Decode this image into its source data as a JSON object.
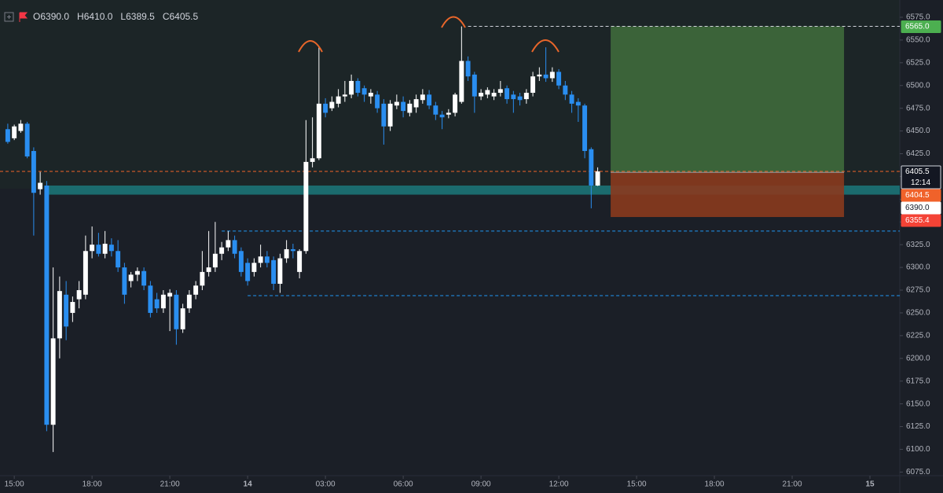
{
  "chart_data": {
    "type": "candlestick",
    "ohlc": [
      {
        "label": "O",
        "value": "6390.0"
      },
      {
        "label": "H",
        "value": "6410.0"
      },
      {
        "label": "L",
        "value": "6389.5"
      },
      {
        "label": "C",
        "value": "6405.5"
      }
    ],
    "x": [
      -0.25,
      0,
      0.25,
      0.5,
      0.75,
      1,
      1.25,
      1.5,
      1.75,
      2,
      2.25,
      2.5,
      2.75,
      3,
      3.25,
      3.5,
      3.75,
      4,
      4.25,
      4.5,
      4.75,
      5,
      5.25,
      5.5,
      5.75,
      6,
      6.25,
      6.5,
      6.75,
      7,
      7.25,
      7.5,
      7.75,
      8,
      8.25,
      8.5,
      8.75,
      9,
      9.25,
      9.5,
      9.75,
      10,
      10.25,
      10.5,
      10.75,
      11,
      11.25,
      11.5,
      11.75,
      12,
      12.25,
      12.5,
      12.75,
      13,
      13.25,
      13.5,
      13.75,
      14,
      14.25,
      14.5,
      14.75,
      15,
      15.25,
      15.5,
      15.75,
      16,
      16.25,
      16.5,
      16.75,
      17,
      17.25,
      17.5,
      17.75,
      18,
      18.25,
      18.5,
      18.75,
      19,
      19.25,
      19.5,
      19.75,
      20,
      20.25,
      20.5,
      20.75,
      21,
      21.25,
      21.5,
      21.75,
      22,
      22.25,
      22.5
    ],
    "open": [
      6452,
      6442,
      6450,
      6458,
      6428,
      6386,
      6390,
      6127,
      6222,
      6270,
      6250,
      6265,
      6270,
      6318,
      6325,
      6315,
      6325,
      6318,
      6300,
      6285,
      6292,
      6296,
      6280,
      6265,
      6255,
      6268,
      6270,
      6232,
      6255,
      6270,
      6280,
      6295,
      6300,
      6315,
      6322,
      6330,
      6318,
      6305,
      6295,
      6305,
      6312,
      6308,
      6282,
      6310,
      6320,
      6295,
      6318,
      6416,
      6420,
      6480,
      6475,
      6480,
      6488,
      6490,
      6505,
      6497,
      6488,
      6490,
      6480,
      6455,
      6478,
      6482,
      6470,
      6476,
      6484,
      6490,
      6478,
      6468,
      6468,
      6470,
      6482,
      6527,
      6512,
      6488,
      6490,
      6488,
      6492,
      6497,
      6490,
      6488,
      6485,
      6492,
      6510,
      6512,
      6508,
      6515,
      6500,
      6490,
      6482,
      6478,
      6430,
      6390
    ],
    "high": [
      6458,
      6457,
      6462,
      6460,
      6432,
      6405,
      6395,
      6300,
      6290,
      6285,
      6268,
      6285,
      6335,
      6345,
      6338,
      6340,
      6332,
      6330,
      6305,
      6295,
      6300,
      6300,
      6285,
      6272,
      6275,
      6276,
      6275,
      6260,
      6275,
      6285,
      6318,
      6340,
      6350,
      6328,
      6340,
      6335,
      6322,
      6310,
      6310,
      6325,
      6318,
      6312,
      6315,
      6330,
      6326,
      6320,
      6462,
      6465,
      6542,
      6486,
      6488,
      6496,
      6505,
      6512,
      6508,
      6500,
      6496,
      6494,
      6485,
      6484,
      6490,
      6488,
      6484,
      6490,
      6496,
      6495,
      6482,
      6472,
      6474,
      6492,
      6565,
      6532,
      6515,
      6496,
      6498,
      6496,
      6505,
      6500,
      6494,
      6492,
      6496,
      6515,
      6520,
      6542,
      6520,
      6518,
      6505,
      6494,
      6486,
      6480,
      6432,
      6410
    ],
    "low": [
      6436,
      6440,
      6448,
      6420,
      6335,
      6380,
      6120,
      6097,
      6200,
      6220,
      6240,
      6255,
      6265,
      6310,
      6312,
      6310,
      6312,
      6295,
      6260,
      6278,
      6285,
      6275,
      6245,
      6250,
      6250,
      6230,
      6215,
      6228,
      6250,
      6265,
      6275,
      6290,
      6295,
      6308,
      6318,
      6310,
      6290,
      6280,
      6290,
      6300,
      6300,
      6275,
      6272,
      6305,
      6310,
      6288,
      6315,
      6410,
      6418,
      6465,
      6472,
      6476,
      6482,
      6486,
      6488,
      6482,
      6480,
      6470,
      6435,
      6450,
      6474,
      6465,
      6466,
      6470,
      6480,
      6474,
      6462,
      6452,
      6464,
      6466,
      6480,
      6505,
      6470,
      6484,
      6486,
      6484,
      6488,
      6480,
      6470,
      6478,
      6480,
      6488,
      6505,
      6504,
      6504,
      6496,
      6484,
      6470,
      6460,
      6420,
      6365,
      6389.5
    ],
    "close": [
      6438,
      6455,
      6458,
      6422,
      6382,
      6393,
      6127,
      6222,
      6274,
      6235,
      6262,
      6275,
      6318,
      6325,
      6315,
      6326,
      6318,
      6300,
      6270,
      6292,
      6296,
      6280,
      6250,
      6255,
      6270,
      6272,
      6232,
      6255,
      6270,
      6280,
      6295,
      6300,
      6315,
      6322,
      6330,
      6315,
      6295,
      6285,
      6305,
      6312,
      6305,
      6282,
      6310,
      6320,
      6318,
      6318,
      6416,
      6420,
      6480,
      6470,
      6482,
      6488,
      6490,
      6505,
      6492,
      6490,
      6492,
      6475,
      6455,
      6480,
      6482,
      6472,
      6480,
      6485,
      6490,
      6478,
      6468,
      6465,
      6470,
      6490,
      6527,
      6510,
      6488,
      6492,
      6495,
      6492,
      6496,
      6485,
      6485,
      6484,
      6492,
      6510,
      6512,
      6508,
      6515,
      6500,
      6490,
      6480,
      6478,
      6428,
      6390,
      6405.5
    ],
    "up_color": "#ffffff",
    "down_color": "#2a8ef0",
    "xlim": [
      -0.55,
      34.15
    ],
    "ylim": [
      6071,
      6594
    ],
    "xticks": [
      {
        "value": 0,
        "label": "15:00"
      },
      {
        "value": 3,
        "label": "18:00"
      },
      {
        "value": 6,
        "label": "21:00"
      },
      {
        "value": 9,
        "label": "14"
      },
      {
        "value": 12,
        "label": "03:00"
      },
      {
        "value": 15,
        "label": "06:00"
      },
      {
        "value": 18,
        "label": "09:00"
      },
      {
        "value": 21,
        "label": "12:00"
      },
      {
        "value": 24,
        "label": "15:00"
      },
      {
        "value": 27,
        "label": "18:00"
      },
      {
        "value": 30,
        "label": "21:00"
      },
      {
        "value": 33,
        "label": "15"
      }
    ],
    "yticks": [
      {
        "value": 6075,
        "label": "6075.0"
      },
      {
        "value": 6100,
        "label": "6100.0"
      },
      {
        "value": 6125,
        "label": "6125.0"
      },
      {
        "value": 6150,
        "label": "6150.0"
      },
      {
        "value": 6175,
        "label": "6175.0"
      },
      {
        "value": 6200,
        "label": "6200.0"
      },
      {
        "value": 6225,
        "label": "6225.0"
      },
      {
        "value": 6250,
        "label": "6250.0"
      },
      {
        "value": 6275,
        "label": "6275.0"
      },
      {
        "value": 6300,
        "label": "6300.0"
      },
      {
        "value": 6325,
        "label": "6325.0"
      },
      {
        "value": 6350,
        "label": "6350.0"
      },
      {
        "value": 6375,
        "label": "6375.0"
      },
      {
        "value": 6400,
        "label": "6400.0"
      },
      {
        "value": 6425,
        "label": "6425.0"
      },
      {
        "value": 6450,
        "label": "6450.0"
      },
      {
        "value": 6475,
        "label": "6475.0"
      },
      {
        "value": 6500,
        "label": "6500.0"
      },
      {
        "value": 6525,
        "label": "6525.0"
      },
      {
        "value": 6550,
        "label": "6550.0"
      },
      {
        "value": 6575,
        "label": "6575.0"
      }
    ],
    "zone": {
      "low": 6380,
      "high": 6390,
      "x_start": 1.25,
      "color": "#1b6b6e"
    },
    "position": {
      "x_start": 23,
      "x_end": 32,
      "entry": 6404.5,
      "target": 6565,
      "stop": 6355.4,
      "profit_color": "#3f6a3c",
      "loss_color": "#8a3a1e"
    },
    "levels": [
      {
        "value": 6565,
        "x_start": 17.5,
        "color": "#d1d4dc"
      },
      {
        "value": 6340,
        "x_start": 8,
        "color": "#2196f3"
      },
      {
        "value": 6269,
        "x_start": 9,
        "color": "#2196f3"
      },
      {
        "value": 6405.5,
        "x_start": -0.55,
        "color": "#f0622a"
      }
    ],
    "price_tags": [
      {
        "value": 6565,
        "label": "6565.0",
        "color": "#4caf50"
      },
      {
        "value": 6405.5,
        "label": "6405.5",
        "color": "#131722",
        "countdown": "12:14"
      },
      {
        "value": 6404.5,
        "label": "6404.5",
        "color": "#f0622a"
      },
      {
        "value": 6390,
        "label": "6390.0",
        "color": "#ffffff"
      },
      {
        "value": 6355.4,
        "label": "6355.4",
        "color": "#f44336"
      }
    ]
  }
}
